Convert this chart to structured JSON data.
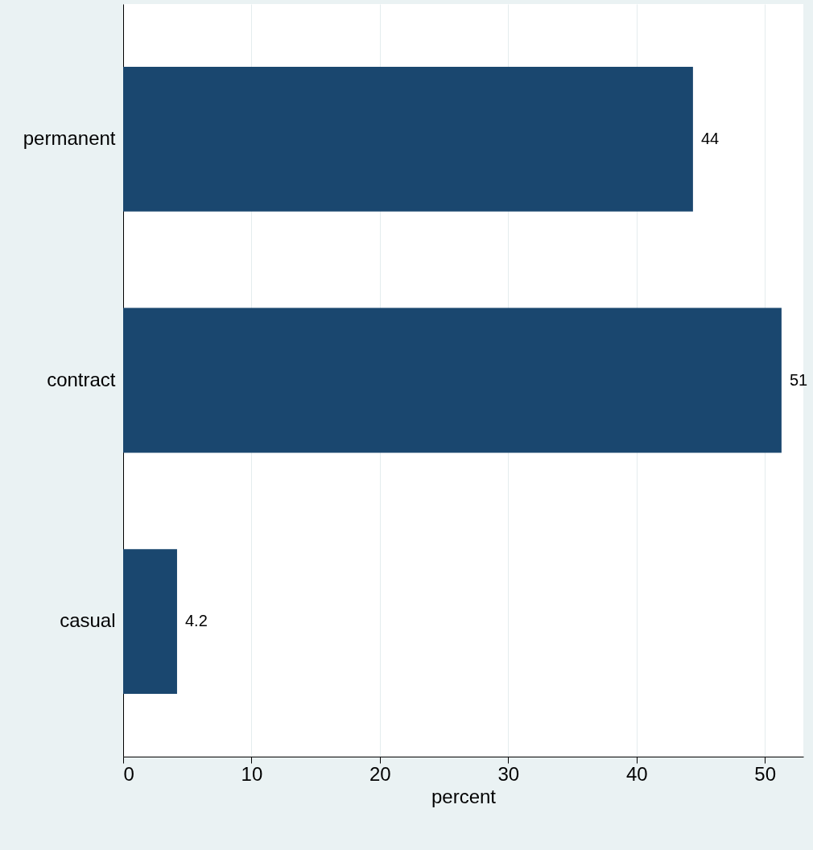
{
  "chart_data": {
    "type": "bar",
    "orientation": "horizontal",
    "categories": [
      "permanent",
      "contract",
      "casual"
    ],
    "values": [
      44.4,
      51.3,
      4.2
    ],
    "value_labels": [
      "44",
      "51",
      "4.2"
    ],
    "color": "#1a476f",
    "xlabel": "percent",
    "xlim": [
      0,
      53
    ],
    "xticks": [
      0,
      10,
      20,
      30,
      40,
      50
    ],
    "grid": "x"
  }
}
